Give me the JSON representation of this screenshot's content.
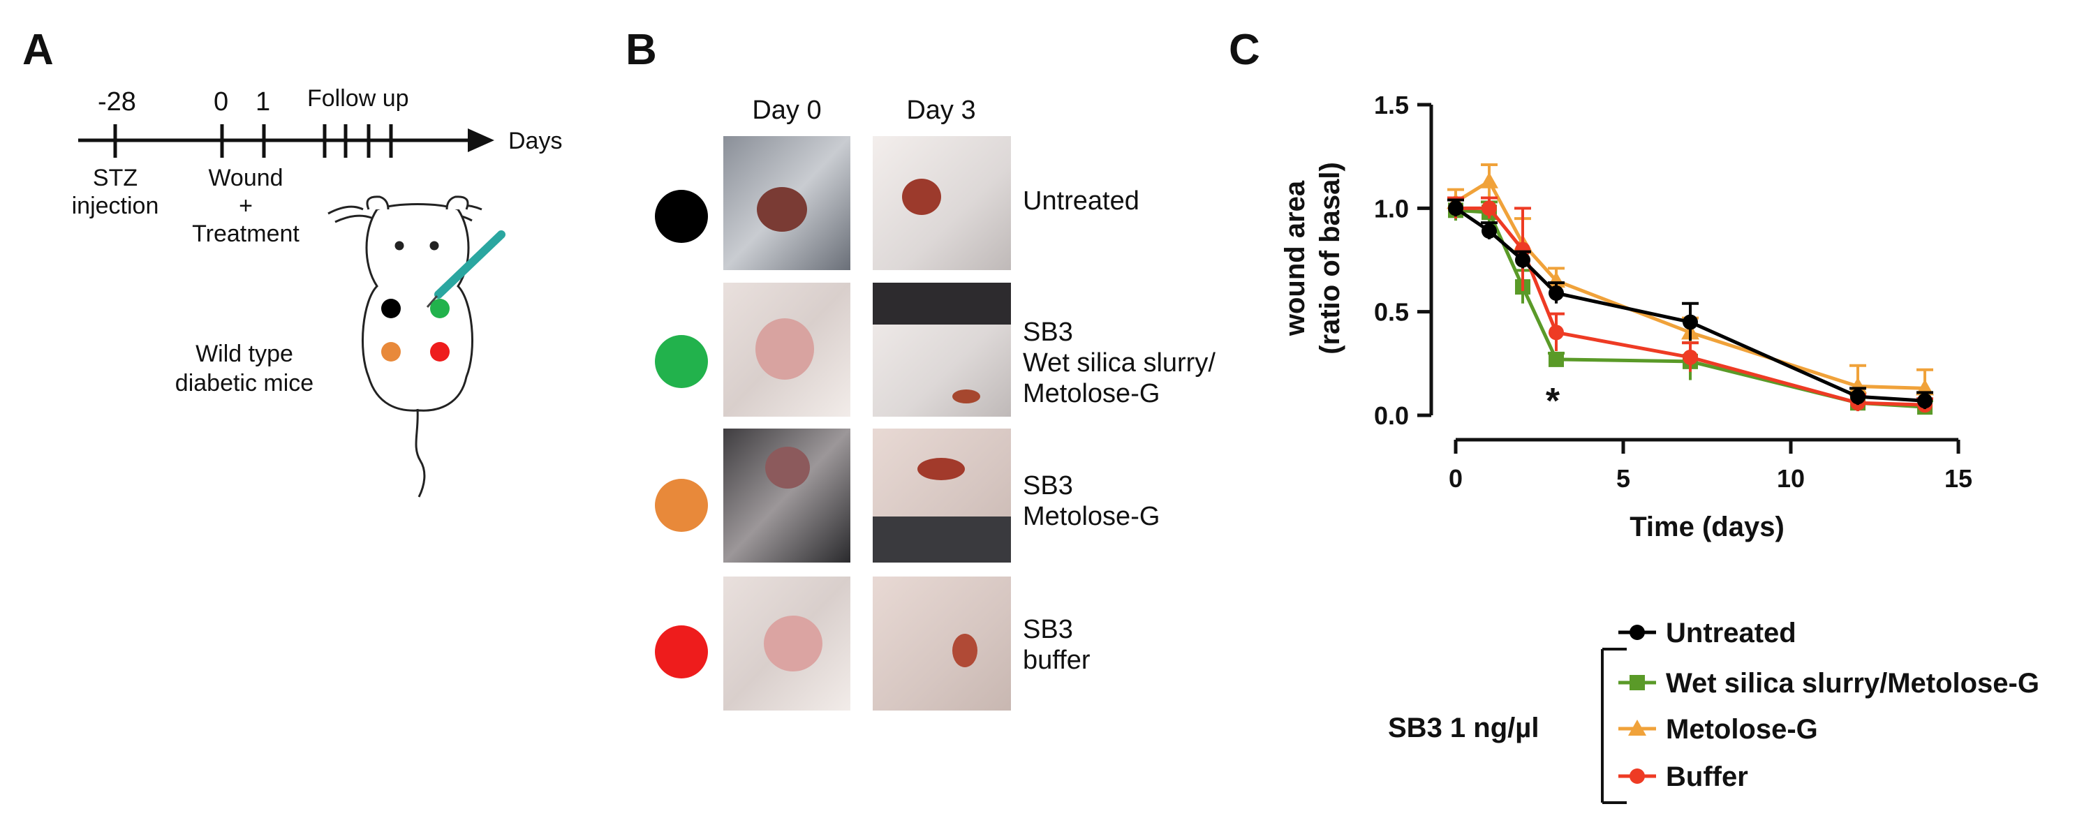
{
  "panels": {
    "A": {
      "letter": "A",
      "timeline": {
        "ticks": [
          "-28",
          "0",
          "1"
        ],
        "follow_up_label": "Follow up",
        "axis_label": "Days",
        "stz_label_1": "STZ",
        "stz_label_2": "injection",
        "wound_label_1": "Wound",
        "wound_label_2": "+",
        "wound_label_3": "Treatment"
      },
      "mice_label_1": "Wild type",
      "mice_label_2": "diabetic mice",
      "dot_colors": [
        "#000000",
        "#22b24c",
        "#e8893a",
        "#ee1c1c"
      ]
    },
    "B": {
      "letter": "B",
      "col_headers": [
        "Day 0",
        "Day 3"
      ],
      "rows": [
        {
          "color": "#000000",
          "label_lines": [
            "Untreated"
          ]
        },
        {
          "color": "#22b24c",
          "label_lines": [
            "SB3",
            "Wet silica slurry/",
            "Metolose-G"
          ]
        },
        {
          "color": "#e8893a",
          "label_lines": [
            "SB3",
            "Metolose-G"
          ]
        },
        {
          "color": "#ee1c1c",
          "label_lines": [
            "SB3",
            "buffer"
          ]
        }
      ]
    },
    "C": {
      "letter": "C",
      "significance": "*",
      "legend_group_label": "SB3 1 ng/µl"
    }
  },
  "chart_data": {
    "type": "line",
    "xlabel": "Time (days)",
    "ylabel_line1": "wound area",
    "ylabel_line2": "(ratio of basal)",
    "xlim": [
      0,
      15
    ],
    "ylim": [
      0,
      1.5
    ],
    "xticks": [
      "0",
      "5",
      "10",
      "15"
    ],
    "yticks": [
      "0.0",
      "0.5",
      "1.0",
      "1.5"
    ],
    "series": [
      {
        "name": "Untreated",
        "color": "#000000",
        "marker": "circle",
        "x": [
          0,
          1,
          2,
          3,
          7,
          12,
          14
        ],
        "y": [
          1.0,
          0.89,
          0.75,
          0.59,
          0.45,
          0.09,
          0.07
        ],
        "err": [
          0.04,
          0.04,
          0.04,
          0.05,
          0.09,
          0.04,
          0.04
        ]
      },
      {
        "name": "Wet silica slurry/Metolose-G",
        "color": "#5a9a28",
        "marker": "square",
        "x": [
          0,
          1,
          2,
          3,
          7,
          12,
          14
        ],
        "y": [
          0.99,
          0.98,
          0.62,
          0.27,
          0.26,
          0.06,
          0.04
        ],
        "err": [
          0.05,
          0.05,
          0.08,
          0.03,
          0.09,
          0.04,
          0.03
        ]
      },
      {
        "name": "Metolose-G",
        "color": "#f0a23a",
        "marker": "triangle",
        "x": [
          0,
          1,
          2,
          3,
          7,
          12,
          14
        ],
        "y": [
          1.03,
          1.13,
          0.83,
          0.65,
          0.4,
          0.14,
          0.13
        ],
        "err": [
          0.06,
          0.08,
          0.12,
          0.06,
          0.07,
          0.1,
          0.09
        ]
      },
      {
        "name": "Buffer",
        "color": "#ee3b24",
        "marker": "circle",
        "x": [
          0,
          1,
          2,
          3,
          7,
          12,
          14
        ],
        "y": [
          1.0,
          1.0,
          0.8,
          0.4,
          0.28,
          0.06,
          0.05
        ],
        "err": [
          0.05,
          0.05,
          0.2,
          0.09,
          0.07,
          0.04,
          0.03
        ]
      }
    ]
  }
}
